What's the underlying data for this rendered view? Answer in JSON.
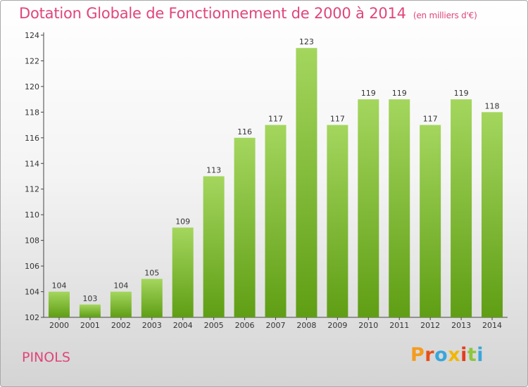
{
  "header": {
    "title": "Dotation Globale de Fonctionnement de 2000 à 2014",
    "unit": "(en milliers d'€)"
  },
  "footer": {
    "commune": "PINOLS",
    "logo": "Proxiti"
  },
  "colors": {
    "title": "#e0457b",
    "bar_top": "#a4d65e",
    "bar_bottom": "#5f9e14",
    "logo_letters": [
      "#f39c1e",
      "#e84e1b",
      "#3aa6d9",
      "#f2b705",
      "#e23e1f",
      "#8dc63f",
      "#3aa6d9"
    ]
  },
  "chart_data": {
    "type": "bar",
    "title": "Dotation Globale de Fonctionnement de 2000 à 2014",
    "subtitle": "(en milliers d'€)",
    "categories": [
      "2000",
      "2001",
      "2002",
      "2003",
      "2004",
      "2005",
      "2006",
      "2007",
      "2008",
      "2009",
      "2010",
      "2011",
      "2012",
      "2013",
      "2014"
    ],
    "values": [
      104,
      103,
      104,
      105,
      109,
      113,
      116,
      117,
      123,
      117,
      119,
      119,
      117,
      119,
      118
    ],
    "ylim": [
      102,
      124
    ],
    "yticks": [
      102,
      104,
      106,
      108,
      110,
      112,
      114,
      116,
      118,
      120,
      122,
      124
    ],
    "grid": false,
    "data_labels": true
  }
}
